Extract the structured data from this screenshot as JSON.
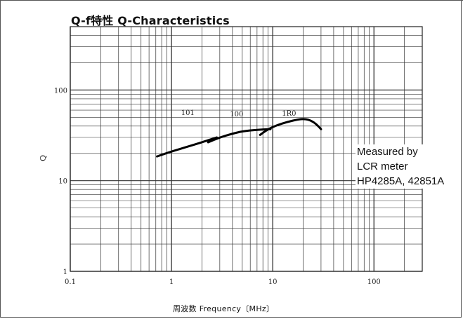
{
  "chart_data": {
    "type": "line",
    "title": "Q-f特性 Q-Characteristics",
    "xlabel": "周波数 Frequency〔MHz〕",
    "ylabel": "Q",
    "x_scale": "log",
    "y_scale": "log",
    "xlim": [
      0.1,
      300
    ],
    "ylim": [
      1,
      500
    ],
    "grid": true,
    "x_ticks": [
      {
        "value": 0.1,
        "label": "0.1"
      },
      {
        "value": 1,
        "label": "1"
      },
      {
        "value": 10,
        "label": "10"
      },
      {
        "value": 100,
        "label": "100"
      }
    ],
    "y_ticks": [
      {
        "value": 1,
        "label": "1"
      },
      {
        "value": 10,
        "label": "10"
      },
      {
        "value": 100,
        "label": "100"
      }
    ],
    "series": [
      {
        "name": "101",
        "x": [
          0.72,
          1.0,
          1.5,
          2.0,
          2.8
        ],
        "y": [
          18.5,
          21,
          24,
          26.5,
          30
        ]
      },
      {
        "name": "100",
        "x": [
          2.3,
          3.0,
          4.0,
          5.0,
          7.0,
          9.5
        ],
        "y": [
          26.5,
          30,
          33,
          35,
          36.5,
          37
        ]
      },
      {
        "name": "1R0",
        "x": [
          7.5,
          9.0,
          11,
          14,
          18,
          21,
          24,
          27,
          30
        ],
        "y": [
          32,
          37,
          41,
          44.5,
          47.5,
          48,
          46,
          42,
          37
        ]
      }
    ],
    "annotations": [
      {
        "text": "101",
        "x": 1.45,
        "y": 57
      },
      {
        "text": "100",
        "x": 4.4,
        "y": 55
      },
      {
        "text": "1R0",
        "x": 14.5,
        "y": 56
      }
    ],
    "legend_note": [
      "Measured by",
      "LCR meter",
      "HP4285A, 42851A"
    ]
  }
}
